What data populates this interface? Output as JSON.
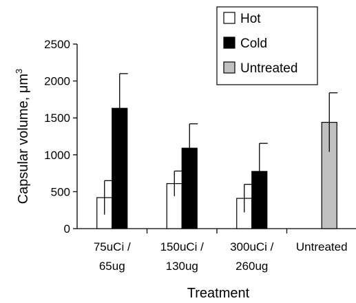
{
  "chart_data": {
    "type": "bar",
    "title": "",
    "xlabel": "Treatment",
    "ylabel": "Capsular volume, μm³",
    "ylabel_main": "Capsular volume, μm",
    "ylabel_sup": "3",
    "ylim": [
      0,
      2500
    ],
    "yticks": [
      0,
      500,
      1000,
      1500,
      2000,
      2500
    ],
    "ytick_labels": [
      "0",
      "500",
      "1000",
      "1500",
      "2000",
      "2500"
    ],
    "grid": false,
    "legend_position": "top-right",
    "categories": [
      {
        "line1": "75uCi /",
        "line2": "65ug"
      },
      {
        "line1": "150uCi /",
        "line2": "130ug"
      },
      {
        "line1": "300uCi /",
        "line2": "260ug"
      },
      {
        "line1": "Untreated",
        "line2": ""
      }
    ],
    "series": [
      {
        "name": "Hot",
        "color": "#ffffff",
        "values": [
          420,
          610,
          410,
          null
        ],
        "errors": [
          230,
          170,
          190,
          null
        ]
      },
      {
        "name": "Cold",
        "color": "#000000",
        "values": [
          1630,
          1090,
          775,
          null
        ],
        "errors": [
          470,
          330,
          380,
          null
        ]
      },
      {
        "name": "Untreated",
        "color": "#c0c0c0",
        "values": [
          null,
          null,
          null,
          1440
        ],
        "errors": [
          null,
          null,
          null,
          400
        ]
      }
    ]
  }
}
